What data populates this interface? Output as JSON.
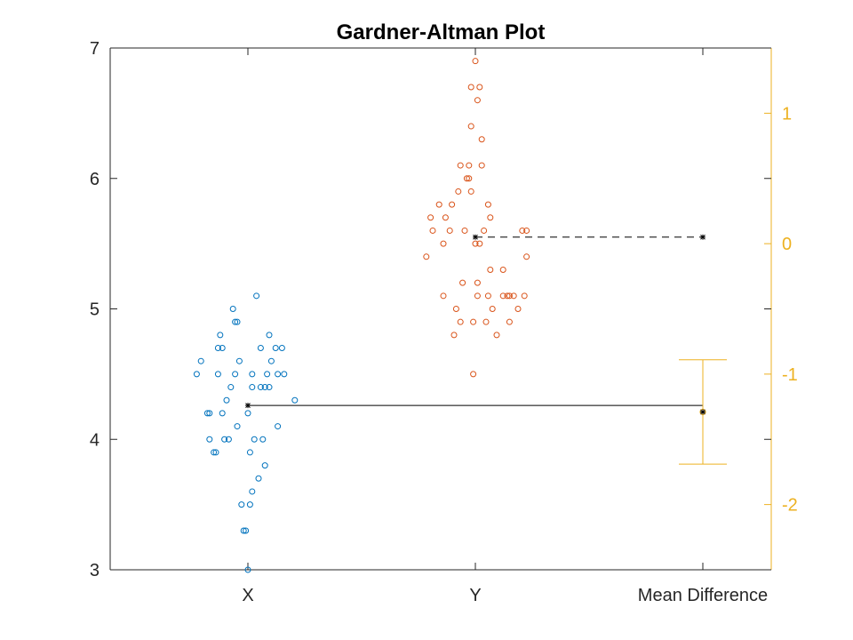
{
  "chart_data": {
    "type": "scatter",
    "title": "Gardner-Altman Plot",
    "xlabel": "",
    "ylabel": "",
    "categories": [
      "X",
      "Y",
      "Mean Difference"
    ],
    "ylim": [
      3,
      7
    ],
    "yticks": [
      "3",
      "4",
      "5",
      "6",
      "7"
    ],
    "y2lim": [
      -2.5,
      1.5
    ],
    "y2ticks": [
      "-2",
      "-1",
      "0",
      "1"
    ],
    "colors": {
      "X": "#0072BD",
      "Y": "#D95319",
      "diff": "#EDB120",
      "axis": "#262626"
    },
    "grid": false,
    "series": [
      {
        "category": "X",
        "mean": 4.26,
        "points": [
          [
            -0.24,
            4.5
          ],
          [
            -0.22,
            4.6
          ],
          [
            -0.19,
            4.2
          ],
          [
            -0.18,
            4.2
          ],
          [
            -0.18,
            4.0
          ],
          [
            -0.16,
            3.9
          ],
          [
            -0.15,
            3.9
          ],
          [
            -0.14,
            4.7
          ],
          [
            -0.14,
            4.5
          ],
          [
            -0.13,
            4.8
          ],
          [
            -0.12,
            4.7
          ],
          [
            -0.12,
            4.2
          ],
          [
            -0.11,
            4.0
          ],
          [
            -0.1,
            4.3
          ],
          [
            -0.09,
            4.0
          ],
          [
            -0.08,
            4.4
          ],
          [
            -0.07,
            5.0
          ],
          [
            -0.06,
            4.9
          ],
          [
            -0.06,
            4.5
          ],
          [
            -0.05,
            4.1
          ],
          [
            -0.05,
            4.9
          ],
          [
            -0.04,
            4.6
          ],
          [
            -0.03,
            3.5
          ],
          [
            -0.02,
            3.3
          ],
          [
            -0.01,
            3.3
          ],
          [
            0.0,
            3.0
          ],
          [
            0.0,
            4.2
          ],
          [
            0.01,
            3.9
          ],
          [
            0.01,
            3.5
          ],
          [
            0.02,
            3.6
          ],
          [
            0.02,
            4.5
          ],
          [
            0.02,
            4.4
          ],
          [
            0.03,
            4.0
          ],
          [
            0.04,
            5.1
          ],
          [
            0.05,
            3.7
          ],
          [
            0.06,
            4.4
          ],
          [
            0.06,
            4.7
          ],
          [
            0.07,
            4.0
          ],
          [
            0.08,
            3.8
          ],
          [
            0.08,
            4.4
          ],
          [
            0.09,
            4.5
          ],
          [
            0.1,
            4.8
          ],
          [
            0.1,
            4.4
          ],
          [
            0.11,
            4.6
          ],
          [
            0.13,
            4.7
          ],
          [
            0.14,
            4.1
          ],
          [
            0.14,
            4.5
          ],
          [
            0.16,
            4.7
          ],
          [
            0.17,
            4.5
          ],
          [
            0.22,
            4.3
          ]
        ]
      },
      {
        "category": "Y",
        "mean": 5.55,
        "points": [
          [
            -0.23,
            5.4
          ],
          [
            -0.21,
            5.7
          ],
          [
            -0.2,
            5.6
          ],
          [
            -0.17,
            5.8
          ],
          [
            -0.15,
            5.5
          ],
          [
            -0.15,
            5.1
          ],
          [
            -0.14,
            5.7
          ],
          [
            -0.12,
            5.6
          ],
          [
            -0.11,
            5.8
          ],
          [
            -0.1,
            4.8
          ],
          [
            -0.09,
            5.0
          ],
          [
            -0.08,
            5.9
          ],
          [
            -0.07,
            6.1
          ],
          [
            -0.07,
            4.9
          ],
          [
            -0.06,
            5.2
          ],
          [
            -0.05,
            5.6
          ],
          [
            -0.04,
            6.0
          ],
          [
            -0.03,
            6.1
          ],
          [
            -0.03,
            6.0
          ],
          [
            -0.02,
            5.9
          ],
          [
            -0.02,
            6.4
          ],
          [
            -0.02,
            6.7
          ],
          [
            -0.01,
            4.9
          ],
          [
            -0.01,
            4.5
          ],
          [
            0.0,
            6.9
          ],
          [
            0.0,
            5.5
          ],
          [
            0.01,
            6.6
          ],
          [
            0.01,
            5.2
          ],
          [
            0.01,
            5.1
          ],
          [
            0.02,
            6.7
          ],
          [
            0.02,
            5.5
          ],
          [
            0.03,
            6.1
          ],
          [
            0.03,
            6.3
          ],
          [
            0.04,
            5.6
          ],
          [
            0.05,
            4.9
          ],
          [
            0.06,
            5.1
          ],
          [
            0.06,
            5.8
          ],
          [
            0.07,
            5.3
          ],
          [
            0.07,
            5.7
          ],
          [
            0.08,
            5.0
          ],
          [
            0.1,
            4.8
          ],
          [
            0.13,
            5.1
          ],
          [
            0.13,
            5.3
          ],
          [
            0.15,
            5.1
          ],
          [
            0.16,
            4.9
          ],
          [
            0.16,
            5.1
          ],
          [
            0.18,
            5.1
          ],
          [
            0.2,
            5.0
          ],
          [
            0.22,
            5.6
          ],
          [
            0.23,
            5.1
          ],
          [
            0.24,
            5.6
          ],
          [
            0.24,
            5.4
          ]
        ]
      }
    ],
    "mean_difference": {
      "value": -1.29,
      "ci": [
        -1.69,
        -0.89
      ]
    }
  }
}
